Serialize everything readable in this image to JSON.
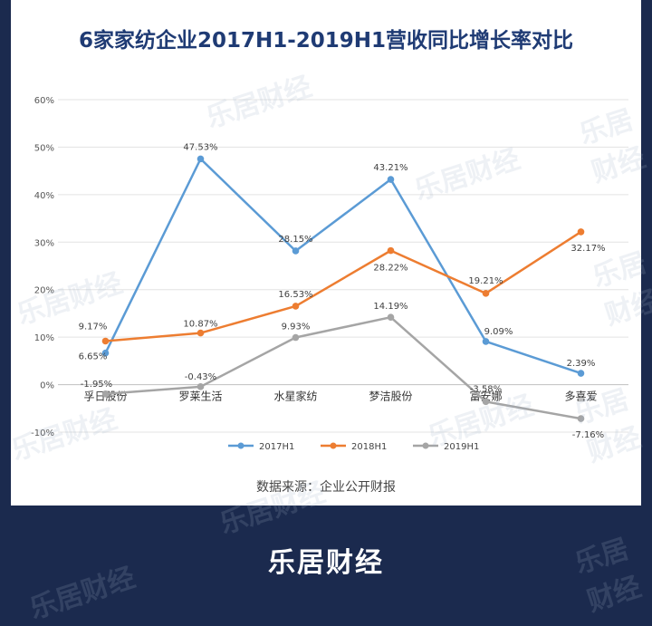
{
  "brand": {
    "logo_text": "乐居财经",
    "watermark_text": "乐居财经"
  },
  "colors": {
    "background": "#1b2a4e",
    "panel": "#ffffff",
    "title": "#1f3b74",
    "series": [
      "#5b9bd5",
      "#ed7d31",
      "#a5a5a5"
    ]
  },
  "chart_data": {
    "type": "line",
    "title": "6家家纺企业2017H1-2019H1营收同比增长率对比",
    "source_note": "数据来源：企业公开财报",
    "categories": [
      "孚日股份",
      "罗莱生活",
      "水星家纺",
      "梦洁股份",
      "富安娜",
      "多喜爱"
    ],
    "series": [
      {
        "name": "2017H1",
        "values": [
          6.65,
          47.53,
          28.15,
          43.21,
          9.09,
          2.39
        ],
        "labels": [
          "6.65%",
          "47.53%",
          "28.15%",
          "43.21%",
          "9.09%",
          "2.39%"
        ]
      },
      {
        "name": "2018H1",
        "values": [
          9.17,
          10.87,
          16.53,
          28.22,
          19.21,
          32.17
        ],
        "labels": [
          "9.17%",
          "10.87%",
          "16.53%",
          "28.22%",
          "19.21%",
          "32.17%"
        ]
      },
      {
        "name": "2019H1",
        "values": [
          -1.95,
          -0.43,
          9.93,
          14.19,
          -3.58,
          -7.16
        ],
        "labels": [
          "-1.95%",
          "-0.43%",
          "9.93%",
          "14.19%",
          "-3.58%",
          "-7.16%"
        ]
      }
    ],
    "y_ticks": [
      "-10%",
      "0%",
      "10%",
      "20%",
      "30%",
      "40%",
      "50%",
      "60%"
    ],
    "ylim": [
      -10,
      60
    ],
    "grid": true,
    "legend_position": "bottom"
  }
}
